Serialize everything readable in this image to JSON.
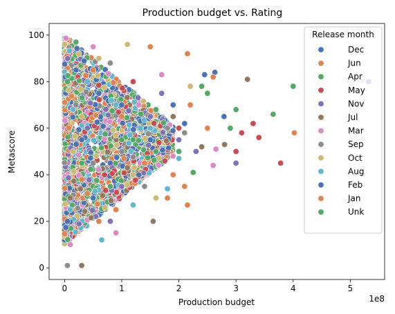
{
  "chart_data": {
    "type": "scatter",
    "title": "Production budget vs. Rating",
    "xlabel": "Production budget",
    "ylabel": "Metascore",
    "x_offset_label": "1e8",
    "xlim": [
      -0.27,
      5.6
    ],
    "ylim": [
      -5,
      105
    ],
    "xticks": [
      0,
      1,
      2,
      3,
      4,
      5
    ],
    "yticks": [
      0,
      20,
      40,
      60,
      80,
      100
    ],
    "grid": false,
    "legend": {
      "title": "Release month",
      "placement": "top-right",
      "entries": [
        "Dec",
        "Jun",
        "Apr",
        "May",
        "Nov",
        "Jul",
        "Mar",
        "Sep",
        "Oct",
        "Aug",
        "Feb",
        "Jan",
        "Unk"
      ]
    },
    "colors": {
      "Dec": "#4c72b0",
      "Jun": "#dd8452",
      "Apr": "#55a868",
      "May": "#c44e52",
      "Nov": "#8172b3",
      "Jul": "#937860",
      "Mar": "#da8bc3",
      "Sep": "#8c8c8c",
      "Oct": "#ccb974",
      "Aug": "#64b5cd",
      "Feb": "#4c72b0",
      "Jan": "#dd8452",
      "Unk": "#55a868"
    },
    "series": [
      {
        "name": "Dec",
        "points": [
          [
            5.32,
            80
          ],
          [
            2.63,
            84
          ],
          [
            2.45,
            83
          ],
          [
            2.79,
            65
          ],
          [
            1.5,
            60
          ],
          [
            0.6,
            75
          ],
          [
            1.9,
            70
          ],
          [
            0.3,
            55
          ]
        ]
      },
      {
        "name": "Jun",
        "points": [
          [
            2.6,
            82
          ],
          [
            2.2,
            70
          ],
          [
            2.15,
            27
          ],
          [
            2.1,
            35
          ],
          [
            1.8,
            30
          ],
          [
            0.9,
            25
          ],
          [
            1.4,
            45
          ],
          [
            0.5,
            85
          ]
        ]
      },
      {
        "name": "Apr",
        "points": [
          [
            4.0,
            78
          ],
          [
            3.65,
            66
          ],
          [
            3.0,
            68
          ],
          [
            2.25,
            41
          ],
          [
            2.5,
            75
          ],
          [
            1.0,
            55
          ],
          [
            0.2,
            97
          ],
          [
            1.6,
            50
          ]
        ]
      },
      {
        "name": "May",
        "points": [
          [
            3.3,
            62
          ],
          [
            3.1,
            58
          ],
          [
            3.0,
            50
          ],
          [
            3.4,
            56
          ],
          [
            3.78,
            45
          ],
          [
            2.0,
            60
          ],
          [
            1.2,
            80
          ],
          [
            0.7,
            40
          ]
        ]
      },
      {
        "name": "Nov",
        "points": [
          [
            3.0,
            45
          ],
          [
            2.0,
            55
          ],
          [
            1.5,
            65
          ],
          [
            1.0,
            35
          ],
          [
            0.4,
            60
          ],
          [
            2.3,
            50
          ],
          [
            1.7,
            75
          ],
          [
            0.8,
            20
          ]
        ]
      },
      {
        "name": "Jul",
        "points": [
          [
            3.2,
            81
          ],
          [
            2.8,
            53
          ],
          [
            2.4,
            52
          ],
          [
            1.55,
            20
          ],
          [
            1.1,
            43
          ],
          [
            0.3,
            1
          ],
          [
            0.1,
            30
          ],
          [
            1.9,
            65
          ]
        ]
      },
      {
        "name": "Mar",
        "points": [
          [
            2.65,
            51
          ],
          [
            2.6,
            44
          ],
          [
            1.9,
            48
          ],
          [
            1.3,
            70
          ],
          [
            0.9,
            15
          ],
          [
            0.1,
            10
          ],
          [
            0.5,
            95
          ],
          [
            1.7,
            83
          ]
        ]
      },
      {
        "name": "Sep",
        "points": [
          [
            1.8,
            60
          ],
          [
            1.0,
            50
          ],
          [
            0.5,
            45
          ],
          [
            0.2,
            70
          ],
          [
            1.4,
            35
          ],
          [
            0.05,
            1
          ],
          [
            0.8,
            88
          ],
          [
            2.1,
            58
          ]
        ]
      },
      {
        "name": "Oct",
        "points": [
          [
            1.1,
            96
          ],
          [
            0.6,
            90
          ],
          [
            1.2,
            40
          ],
          [
            2.2,
            78
          ],
          [
            0.3,
            65
          ],
          [
            0.9,
            57
          ],
          [
            1.6,
            30
          ],
          [
            0.15,
            50
          ]
        ]
      },
      {
        "name": "Aug",
        "points": [
          [
            0.65,
            12
          ],
          [
            1.2,
            27
          ],
          [
            1.8,
            34
          ],
          [
            0.4,
            80
          ],
          [
            1.5,
            60
          ],
          [
            0.1,
            25
          ],
          [
            2.0,
            47
          ],
          [
            0.9,
            70
          ]
        ]
      },
      {
        "name": "Feb",
        "points": [
          [
            1.0,
            70
          ],
          [
            0.5,
            30
          ],
          [
            1.5,
            55
          ],
          [
            2.1,
            62
          ],
          [
            0.2,
            85
          ],
          [
            0.8,
            45
          ],
          [
            1.3,
            40
          ],
          [
            0.05,
            20
          ]
        ]
      },
      {
        "name": "Jan",
        "points": [
          [
            4.02,
            58
          ],
          [
            2.15,
            92
          ],
          [
            1.5,
            95
          ],
          [
            0.6,
            20
          ],
          [
            1.0,
            65
          ],
          [
            1.9,
            40
          ],
          [
            0.3,
            38
          ],
          [
            2.5,
            60
          ]
        ]
      },
      {
        "name": "Unk",
        "points": [
          [
            2.9,
            60
          ],
          [
            2.4,
            78
          ],
          [
            0.8,
            35
          ],
          [
            1.2,
            55
          ],
          [
            0.3,
            45
          ],
          [
            1.6,
            68
          ],
          [
            0.05,
            80
          ],
          [
            2.0,
            50
          ]
        ]
      }
    ],
    "density_region": {
      "note": "dense cloud of points between 0 and ~2.0 on x, ~8 to 100 on y"
    }
  }
}
